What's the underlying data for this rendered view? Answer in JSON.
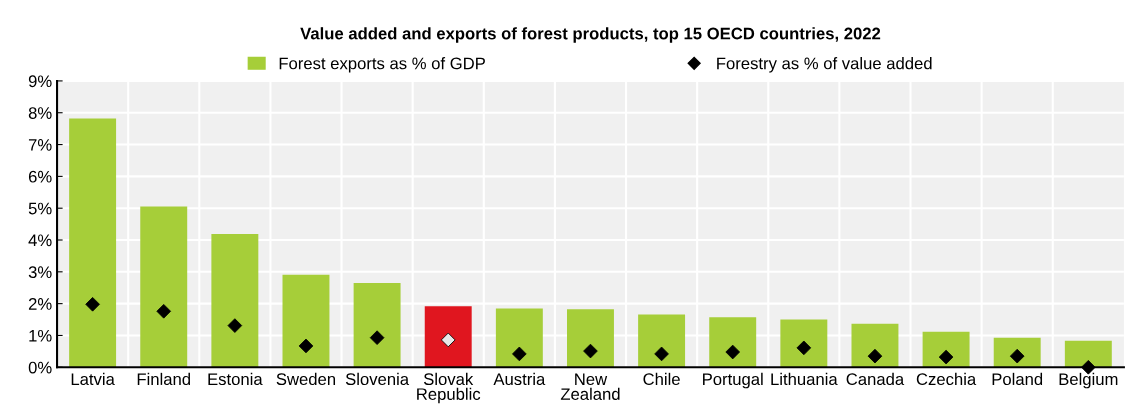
{
  "chart_data": {
    "type": "bar",
    "title": "Value added and exports of forest products, top 15 OECD countries, 2022",
    "categories": [
      "Latvia",
      "Finland",
      "Estonia",
      "Sweden",
      "Slovenia",
      "Slovak\nRepublic",
      "Austria",
      "New\nZealand",
      "Chile",
      "Portugal",
      "Lithuania",
      "Canada",
      "Czechia",
      "Poland",
      "Belgium"
    ],
    "series": [
      {
        "name": "Forest exports as % of GDP",
        "color": "#a6ce39",
        "colors": [
          "#a6ce39",
          "#a6ce39",
          "#a6ce39",
          "#a6ce39",
          "#a6ce39",
          "#e0161f",
          "#a6ce39",
          "#a6ce39",
          "#a6ce39",
          "#a6ce39",
          "#a6ce39",
          "#a6ce39",
          "#a6ce39",
          "#a6ce39",
          "#a6ce39"
        ],
        "values": [
          7.82,
          5.05,
          4.19,
          2.91,
          2.65,
          1.92,
          1.85,
          1.82,
          1.66,
          1.57,
          1.5,
          1.37,
          1.12,
          0.93,
          0.83
        ]
      },
      {
        "name": "Forestry as % of value added",
        "type": "scatter",
        "color": "#000000",
        "colors": [
          "#000000",
          "#000000",
          "#000000",
          "#000000",
          "#000000",
          "#e8e8e8",
          "#000000",
          "#000000",
          "#000000",
          "#000000",
          "#000000",
          "#000000",
          "#000000",
          "#000000",
          "#000000"
        ],
        "values": [
          1.98,
          1.76,
          1.31,
          0.67,
          0.93,
          0.86,
          0.42,
          0.51,
          0.42,
          0.48,
          0.61,
          0.35,
          0.32,
          0.35,
          0.0
        ]
      }
    ],
    "ylim": [
      0,
      9
    ],
    "yticks": [
      {
        "value": 0,
        "label": "0%"
      },
      {
        "value": 1,
        "label": "1%"
      },
      {
        "value": 2,
        "label": "2%"
      },
      {
        "value": 3,
        "label": "3%"
      },
      {
        "value": 4,
        "label": "4%"
      },
      {
        "value": 5,
        "label": "5%"
      },
      {
        "value": 6,
        "label": "6%"
      },
      {
        "value": 7,
        "label": "7%"
      },
      {
        "value": 8,
        "label": "8%"
      },
      {
        "value": 9,
        "label": "9%"
      }
    ],
    "grid": true,
    "legend": "top",
    "marker": "diamond"
  }
}
